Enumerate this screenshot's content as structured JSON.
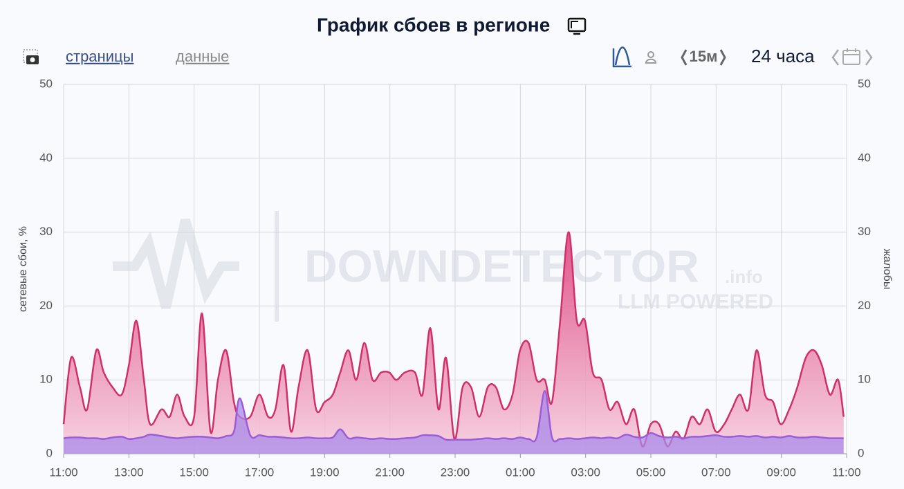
{
  "chart_data": {
    "type": "area",
    "title": "График сбоев в регионе",
    "nav": {
      "pages": "страницы",
      "data": "данные",
      "interval": "15м",
      "period": "24 часа"
    },
    "watermark": {
      "brand": "DOWNDETECTOR",
      "suffix": ".info",
      "tagline": "LLM POWERED"
    },
    "y_label": "сетевые сбои, %",
    "y2_label": "жалобы",
    "x": [
      0,
      0.23,
      0.5,
      0.72,
      1,
      1.23,
      1.5,
      1.78,
      2,
      2.23,
      2.46,
      2.65,
      3,
      3.25,
      3.48,
      3.71,
      4,
      4.24,
      4.5,
      4.73,
      4.98,
      5.22,
      5.4,
      5.72,
      6,
      6.27,
      6.49,
      6.74,
      6.97,
      7.2,
      7.48,
      7.74,
      8,
      8.25,
      8.48,
      8.73,
      8.97,
      9.22,
      9.47,
      9.73,
      9.98,
      10.2,
      10.46,
      10.77,
      11,
      11.24,
      11.49,
      11.72,
      11.98,
      12.23,
      12.49,
      12.74,
      13,
      13.25,
      13.5,
      13.76,
      13.99,
      14.25,
      14.5,
      14.75,
      14.97,
      15.22,
      15.48,
      15.73,
      15.98,
      16.22,
      16.49,
      16.73,
      16.98,
      17.24,
      17.49,
      17.74,
      18,
      18.25,
      18.51,
      18.76,
      19,
      19.25,
      19.5,
      19.74,
      19.99,
      20.25,
      20.48,
      20.73,
      20.99,
      21.24,
      21.5,
      21.75,
      21.98,
      22.24,
      22.49,
      22.75,
      23,
      23.24,
      23.49,
      23.74,
      23.91
    ],
    "series": [
      {
        "color": "#d0306a",
        "fill": "#e4508a",
        "axis": "y2",
        "values": [
          4,
          13,
          9,
          6,
          14,
          11,
          9,
          8,
          12,
          18,
          10,
          4,
          6,
          5,
          8,
          5,
          5,
          19,
          3,
          10,
          14,
          7,
          5,
          5,
          8,
          5,
          6,
          12,
          3,
          9,
          14,
          6,
          7,
          8,
          11,
          14,
          10,
          15,
          10,
          11,
          11,
          10,
          11,
          11,
          8,
          17,
          6,
          13,
          2,
          9,
          9,
          5,
          9,
          9,
          6,
          8,
          14,
          15,
          10,
          10,
          7,
          18,
          30,
          18,
          18,
          11,
          10,
          6,
          7,
          4,
          6,
          1,
          4,
          4,
          1,
          3,
          2,
          5,
          4,
          6,
          3,
          4,
          6,
          8,
          6,
          14,
          8,
          7,
          4,
          6,
          9,
          13,
          14,
          12,
          8,
          10,
          5
        ]
      },
      {
        "color": "#9b5cd8",
        "fill": "#a98ae8",
        "axis": "y",
        "values": [
          2.1,
          2.2,
          2.2,
          2.1,
          2.1,
          2.0,
          2.2,
          2.3,
          2.0,
          2.1,
          2.3,
          2.6,
          2.4,
          2.2,
          2.1,
          2.2,
          2.3,
          2.3,
          2.2,
          2.1,
          2.4,
          3.0,
          7.5,
          2.5,
          2.5,
          2.3,
          2.3,
          2.2,
          2.1,
          2.1,
          2.2,
          2.1,
          2.1,
          2.2,
          3.3,
          2.1,
          2.2,
          2.1,
          2.0,
          2.1,
          2.0,
          2.0,
          2.1,
          2.2,
          2.5,
          2.5,
          2.4,
          1.9,
          1.9,
          1.9,
          1.9,
          2.0,
          2.1,
          2.0,
          2.1,
          2.0,
          2.2,
          2.0,
          2.2,
          8.5,
          2.2,
          2.0,
          2.1,
          2.0,
          2.1,
          2.2,
          2.1,
          2.2,
          2.1,
          2.6,
          2.3,
          2.2,
          2.8,
          2.4,
          2.2,
          2.3,
          2.1,
          2.3,
          2.3,
          2.4,
          2.5,
          2.3,
          2.3,
          2.4,
          2.3,
          2.4,
          2.2,
          2.3,
          2.2,
          2.4,
          2.2,
          2.2,
          2.3,
          2.2,
          2.1,
          2.1,
          2.1
        ]
      }
    ],
    "xlim": [
      0,
      24
    ],
    "xticks": [
      {
        "value": 0,
        "label": "11:00"
      },
      {
        "value": 2,
        "label": "13:00"
      },
      {
        "value": 4,
        "label": "15:00"
      },
      {
        "value": 6,
        "label": "17:00"
      },
      {
        "value": 8,
        "label": "19:00"
      },
      {
        "value": 10,
        "label": "21:00"
      },
      {
        "value": 12,
        "label": "23:00"
      },
      {
        "value": 14,
        "label": "01:00"
      },
      {
        "value": 16,
        "label": "03:00"
      },
      {
        "value": 18,
        "label": "05:00"
      },
      {
        "value": 20,
        "label": "07:00"
      },
      {
        "value": 22,
        "label": "09:00"
      },
      {
        "value": 24,
        "label": "11:00"
      }
    ],
    "ylim": [
      0,
      50
    ],
    "yticks": [
      0,
      10,
      20,
      30,
      40,
      50
    ],
    "y2lim": [
      0,
      50
    ],
    "y2ticks": [
      0,
      10,
      20,
      30,
      40,
      50
    ],
    "grid": true
  }
}
